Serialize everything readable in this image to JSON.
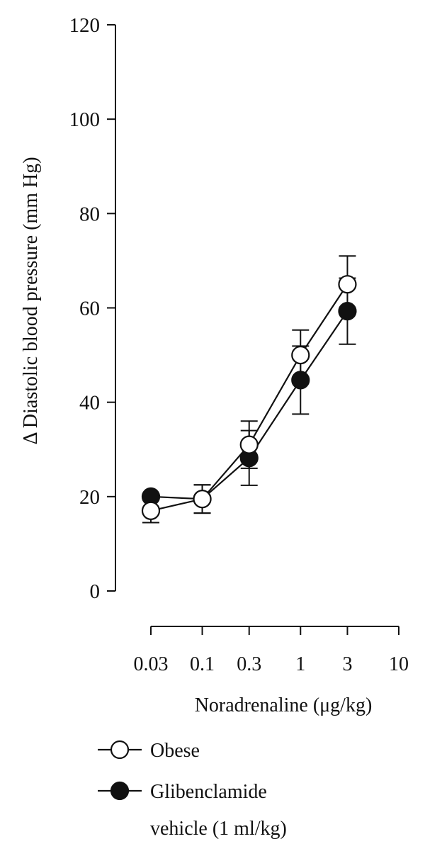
{
  "chart_data": {
    "type": "line",
    "ylabel": "Δ Diastolic blood pressure (mm Hg)",
    "xlabel": "Noradrenaline (μg/kg)",
    "x_scale": "log",
    "x_ticks": [
      "0.03",
      "0.1",
      "0.3",
      "1",
      "3",
      "10"
    ],
    "y_ticks": [
      "0",
      "20",
      "40",
      "60",
      "80",
      "100",
      "120"
    ],
    "ylim": [
      0,
      120
    ],
    "grid": false,
    "legend_position": "bottom",
    "series": [
      {
        "name": "Obese",
        "marker": "open-circle",
        "x": [
          0.03,
          0.1,
          0.3,
          1,
          3
        ],
        "y": [
          17,
          19.5,
          31,
          50,
          65
        ],
        "err": [
          2.5,
          3,
          5,
          5.3,
          6
        ]
      },
      {
        "name": "Glibenclamide vehicle (1 ml/kg)",
        "name_lines": [
          "Glibenclamide",
          "vehicle (1 ml/kg)"
        ],
        "marker": "filled-circle",
        "x": [
          0.03,
          0.1,
          0.3,
          1,
          3
        ],
        "y": [
          20,
          19.5,
          28.2,
          44.7,
          59.3
        ],
        "err": [
          0,
          3,
          5.8,
          7.2,
          7
        ]
      }
    ],
    "colors": {
      "ink": "#111111",
      "open_marker_fill": "#ffffff",
      "filled_marker_fill": "#111111"
    }
  }
}
